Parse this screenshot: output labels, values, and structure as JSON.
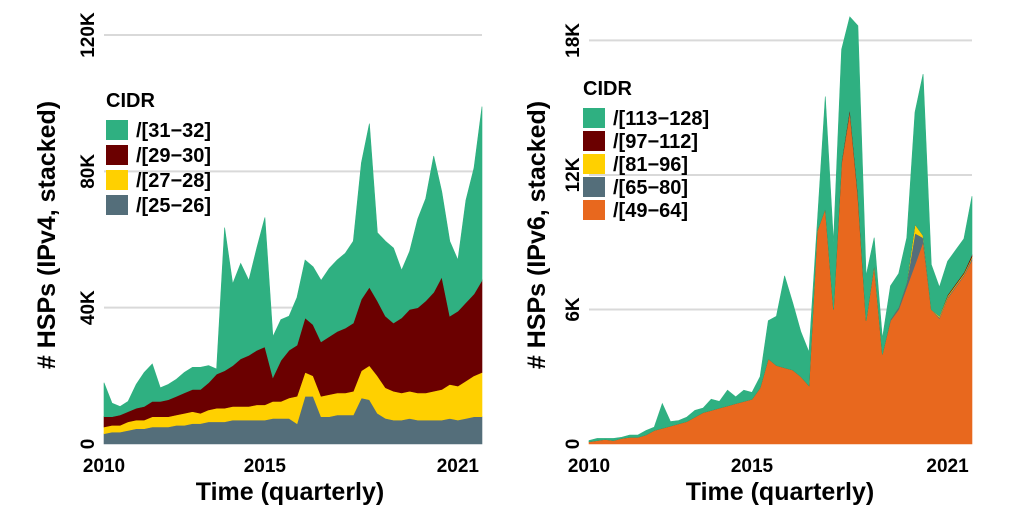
{
  "chart_data": [
    {
      "type": "area",
      "stacked": true,
      "title": "",
      "xlabel": "Time (quarterly)",
      "ylabel": "# HSPs (IPv4, stacked)",
      "xlim": [
        2010,
        2021.75
      ],
      "ylim": [
        0,
        125000
      ],
      "xticks": [
        2010,
        2015,
        2021
      ],
      "yticks": [
        0,
        40000,
        80000,
        120000
      ],
      "ytick_labels": [
        "0",
        "40K",
        "80K",
        "120K"
      ],
      "grid": "horizontal",
      "legend_title": "CIDR",
      "legend_position": "top-left",
      "x": [
        2010,
        2010.25,
        2010.5,
        2010.75,
        2011,
        2011.25,
        2011.5,
        2011.75,
        2012,
        2012.25,
        2012.5,
        2012.75,
        2013,
        2013.25,
        2013.5,
        2013.75,
        2014,
        2014.25,
        2014.5,
        2014.75,
        2015,
        2015.25,
        2015.5,
        2015.75,
        2016,
        2016.25,
        2016.5,
        2016.75,
        2017,
        2017.25,
        2017.5,
        2017.75,
        2018,
        2018.25,
        2018.5,
        2018.75,
        2019,
        2019.25,
        2019.5,
        2019.75,
        2020,
        2020.25,
        2020.5,
        2020.75,
        2021,
        2021.25,
        2021.5,
        2021.75
      ],
      "series": [
        {
          "name": "/[25−26]",
          "color": "#546e7a",
          "values": [
            3000,
            3500,
            3500,
            4000,
            4500,
            4500,
            5000,
            5000,
            5000,
            5500,
            5500,
            6000,
            6000,
            6500,
            6500,
            6500,
            7000,
            7000,
            7000,
            7000,
            7000,
            7500,
            7500,
            7500,
            6000,
            14000,
            14000,
            8000,
            8000,
            8500,
            8500,
            8500,
            13500,
            13000,
            9000,
            7500,
            7000,
            7000,
            7500,
            7000,
            7000,
            7000,
            7000,
            7500,
            7000,
            7500,
            8000,
            8000
          ]
        },
        {
          "name": "/[27−28]",
          "color": "#ffd000",
          "values": [
            2000,
            2000,
            2000,
            2500,
            2500,
            2500,
            3000,
            3000,
            3000,
            3000,
            3500,
            3500,
            3000,
            3500,
            4000,
            4000,
            4000,
            4000,
            4000,
            4500,
            4500,
            5000,
            5000,
            6000,
            8000,
            7000,
            6000,
            6000,
            6500,
            6500,
            6500,
            7000,
            8000,
            10000,
            11000,
            9000,
            8500,
            8000,
            8000,
            8000,
            8000,
            8500,
            9000,
            10000,
            10000,
            11000,
            12000,
            13000
          ]
        },
        {
          "name": "/[29−30]",
          "color": "#6b0000",
          "values": [
            3000,
            2500,
            3000,
            3000,
            3500,
            4000,
            4500,
            4500,
            5000,
            5500,
            6000,
            6500,
            7000,
            8000,
            10000,
            11000,
            12000,
            14000,
            15000,
            16000,
            17000,
            7000,
            12000,
            14000,
            15000,
            16000,
            15000,
            16000,
            17000,
            18000,
            19000,
            20000,
            21000,
            23000,
            22000,
            21000,
            20000,
            22000,
            24000,
            25000,
            27000,
            29000,
            33000,
            20000,
            22000,
            23000,
            24000,
            27000
          ]
        },
        {
          "name": "/[31−32]",
          "color": "#2fb081",
          "values": [
            10000,
            4000,
            2500,
            3000,
            7000,
            10000,
            11000,
            4000,
            4500,
            5000,
            6000,
            6500,
            6500,
            5000,
            1500,
            42000,
            24000,
            28000,
            22000,
            30000,
            38000,
            12000,
            12000,
            10000,
            14000,
            17000,
            17000,
            18000,
            20000,
            21000,
            22000,
            24000,
            40000,
            48000,
            20000,
            22000,
            22000,
            14000,
            17000,
            26000,
            30000,
            40000,
            25000,
            22000,
            15000,
            30000,
            37000,
            51000
          ]
        }
      ]
    },
    {
      "type": "area",
      "stacked": true,
      "title": "",
      "xlabel": "Time (quarterly)",
      "ylabel": "# HSPs (IPv6, stacked)",
      "xlim": [
        2010,
        2021.75
      ],
      "ylim": [
        0,
        19000
      ],
      "xticks": [
        2010,
        2015,
        2021
      ],
      "yticks": [
        0,
        6000,
        12000,
        18000
      ],
      "ytick_labels": [
        "0",
        "6K",
        "12K",
        "18K"
      ],
      "grid": "horizontal",
      "legend_title": "CIDR",
      "legend_position": "top-left",
      "x": [
        2010,
        2010.25,
        2010.5,
        2010.75,
        2011,
        2011.25,
        2011.5,
        2011.75,
        2012,
        2012.25,
        2012.5,
        2012.75,
        2013,
        2013.25,
        2013.5,
        2013.75,
        2014,
        2014.25,
        2014.5,
        2014.75,
        2015,
        2015.25,
        2015.5,
        2015.75,
        2016,
        2016.25,
        2016.5,
        2016.75,
        2017,
        2017.25,
        2017.5,
        2017.75,
        2018,
        2018.25,
        2018.5,
        2018.75,
        2019,
        2019.25,
        2019.5,
        2019.75,
        2020,
        2020.25,
        2020.5,
        2020.75,
        2021,
        2021.25,
        2021.5,
        2021.75
      ],
      "series": [
        {
          "name": "/[49−64]",
          "color": "#e8681e",
          "values": [
            100,
            150,
            200,
            150,
            250,
            300,
            300,
            400,
            600,
            700,
            800,
            900,
            1000,
            1200,
            1400,
            1500,
            1600,
            1700,
            1800,
            1900,
            2000,
            2500,
            3800,
            3500,
            3400,
            3300,
            3000,
            2600,
            9500,
            10500,
            6000,
            12500,
            14800,
            11000,
            5500,
            8000,
            4000,
            5500,
            6000,
            7000,
            8000,
            9000,
            6000,
            5600,
            6500,
            7000,
            7500,
            8200
          ]
        },
        {
          "name": "/[65−80]",
          "color": "#546e7a",
          "values": [
            0,
            0,
            0,
            0,
            0,
            0,
            0,
            0,
            0,
            0,
            0,
            0,
            0,
            0,
            0,
            0,
            0,
            0,
            0,
            0,
            0,
            0,
            0,
            0,
            0,
            0,
            0,
            0,
            0,
            0,
            0,
            50,
            50,
            50,
            0,
            0,
            0,
            50,
            100,
            200,
            1400,
            200,
            0,
            50,
            50,
            50,
            50,
            100
          ]
        },
        {
          "name": "/[81−96]",
          "color": "#ffd000",
          "values": [
            0,
            0,
            0,
            0,
            0,
            0,
            0,
            0,
            0,
            0,
            0,
            0,
            0,
            0,
            0,
            0,
            0,
            0,
            0,
            0,
            0,
            0,
            0,
            0,
            0,
            0,
            0,
            0,
            0,
            0,
            0,
            0,
            0,
            0,
            0,
            0,
            0,
            0,
            0,
            0,
            400,
            100,
            0,
            50,
            50,
            50,
            50,
            50
          ]
        },
        {
          "name": "/[97−112]",
          "color": "#6b0000",
          "values": [
            0,
            0,
            0,
            0,
            0,
            0,
            0,
            0,
            0,
            0,
            0,
            0,
            0,
            0,
            0,
            0,
            0,
            0,
            0,
            0,
            0,
            0,
            0,
            0,
            0,
            0,
            0,
            0,
            0,
            0,
            0,
            50,
            100,
            100,
            0,
            0,
            0,
            0,
            0,
            0,
            0,
            0,
            0,
            0,
            50,
            50,
            50,
            100
          ]
        },
        {
          "name": "/[113−128]",
          "color": "#2fb081",
          "values": [
            50,
            100,
            50,
            100,
            50,
            100,
            100,
            200,
            150,
            1100,
            200,
            150,
            200,
            300,
            200,
            500,
            300,
            700,
            300,
            500,
            300,
            500,
            1700,
            2200,
            4100,
            3000,
            2000,
            1500,
            300,
            5000,
            3000,
            5000,
            4100,
            7500,
            2000,
            1200,
            700,
            1500,
            1500,
            2000,
            5000,
            7200,
            2000,
            1300,
            1500,
            1500,
            1500,
            2600
          ]
        }
      ]
    }
  ]
}
